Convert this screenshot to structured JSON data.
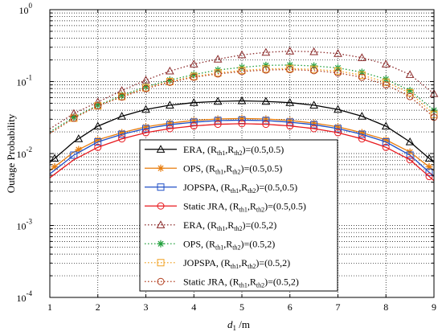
{
  "chart_data": {
    "type": "line",
    "title": "",
    "xlabel": "d",
    "xlabel_sub": "1",
    "xlabel_unit": " /m",
    "ylabel": "Outage Probability",
    "xlim": [
      1,
      9
    ],
    "ylim": [
      0.0001,
      1
    ],
    "yscale": "log",
    "grid": true,
    "legend_position": "lower-center",
    "x_ticks": [
      "1",
      "2",
      "3",
      "4",
      "5",
      "6",
      "7",
      "8",
      "9"
    ],
    "y_ticks": [
      {
        "base": "10",
        "exp": "0"
      },
      {
        "base": "10",
        "exp": "-1"
      },
      {
        "base": "10",
        "exp": "-2"
      },
      {
        "base": "10",
        "exp": "-3"
      },
      {
        "base": "10",
        "exp": "-4"
      }
    ],
    "series": [
      {
        "name": "ERA,",
        "pair": "(0.5,0.5)",
        "color": "#000000",
        "dash": "solid",
        "marker": "triangle",
        "x": [
          1,
          1.5,
          2,
          2.5,
          3,
          3.5,
          4,
          4.5,
          5,
          5.5,
          6,
          6.5,
          7,
          7.5,
          8,
          8.5,
          9
        ],
        "y": [
          0.0075,
          0.0145,
          0.024,
          0.033,
          0.041,
          0.047,
          0.051,
          0.053,
          0.054,
          0.053,
          0.051,
          0.047,
          0.041,
          0.033,
          0.024,
          0.0145,
          0.0075
        ]
      },
      {
        "name": "OPS,",
        "pair": "(0.5,0.5)",
        "color": "#e87d0d",
        "dash": "solid",
        "marker": "star",
        "x": [
          1,
          1.5,
          2,
          2.5,
          3,
          3.5,
          4,
          4.5,
          5,
          5.5,
          6,
          6.5,
          7,
          7.5,
          8,
          8.5,
          9
        ],
        "y": [
          0.0058,
          0.0105,
          0.0155,
          0.0195,
          0.0235,
          0.0265,
          0.0288,
          0.0302,
          0.0307,
          0.0302,
          0.0288,
          0.0265,
          0.0235,
          0.0195,
          0.0155,
          0.0105,
          0.0058
        ]
      },
      {
        "name": "JOPSPA,",
        "pair": "(0.5,0.5)",
        "color": "#1f4fc6",
        "dash": "solid",
        "marker": "square",
        "x": [
          1,
          1.5,
          2,
          2.5,
          3,
          3.5,
          4,
          4.5,
          5,
          5.5,
          6,
          6.5,
          7,
          7.5,
          8,
          8.5,
          9
        ],
        "y": [
          0.0052,
          0.0095,
          0.0145,
          0.0185,
          0.0222,
          0.0252,
          0.0273,
          0.0287,
          0.0291,
          0.0287,
          0.0273,
          0.0252,
          0.0222,
          0.0185,
          0.0145,
          0.0095,
          0.0048
        ]
      },
      {
        "name": "Static JRA,",
        "pair": "(0.5,0.5)",
        "color": "#e8191e",
        "dash": "solid",
        "marker": "circle",
        "x": [
          1,
          1.5,
          2,
          2.5,
          3,
          3.5,
          4,
          4.5,
          5,
          5.5,
          6,
          6.5,
          7,
          7.5,
          8,
          8.5,
          9
        ],
        "y": [
          0.0046,
          0.0082,
          0.0122,
          0.016,
          0.0195,
          0.0222,
          0.0242,
          0.0255,
          0.026,
          0.0255,
          0.0242,
          0.0222,
          0.0195,
          0.016,
          0.0122,
          0.0082,
          0.0042
        ]
      },
      {
        "name": "ERA,",
        "pair": "(0.5,2)",
        "color": "#8b2a2a",
        "dash": "dotted",
        "marker": "triangle",
        "x": [
          1,
          1.5,
          2,
          2.5,
          3,
          3.5,
          4,
          4.5,
          5,
          5.5,
          6,
          6.5,
          7,
          7.5,
          8,
          8.5,
          9
        ],
        "y": [
          0.022,
          0.036,
          0.052,
          0.075,
          0.105,
          0.14,
          0.175,
          0.205,
          0.235,
          0.255,
          0.265,
          0.26,
          0.245,
          0.215,
          0.175,
          0.125,
          0.068
        ]
      },
      {
        "name": "OPS,",
        "pair": "(0.5,2)",
        "color": "#1f9e3a",
        "dash": "dotted",
        "marker": "star",
        "x": [
          1,
          1.5,
          2,
          2.5,
          3,
          3.5,
          4,
          4.5,
          5,
          5.5,
          6,
          6.5,
          7,
          7.5,
          8,
          8.5,
          9
        ],
        "y": [
          0.02,
          0.032,
          0.047,
          0.064,
          0.085,
          0.105,
          0.125,
          0.145,
          0.158,
          0.168,
          0.17,
          0.165,
          0.155,
          0.135,
          0.108,
          0.075,
          0.04
        ]
      },
      {
        "name": "JOPSPA,",
        "pair": "(0.5,2)",
        "color": "#f0a020",
        "dash": "dotted",
        "marker": "square",
        "x": [
          1,
          1.5,
          2,
          2.5,
          3,
          3.5,
          4,
          4.5,
          5,
          5.5,
          6,
          6.5,
          7,
          7.5,
          8,
          8.5,
          9
        ],
        "y": [
          0.019,
          0.031,
          0.046,
          0.062,
          0.082,
          0.1,
          0.118,
          0.132,
          0.143,
          0.15,
          0.152,
          0.148,
          0.14,
          0.123,
          0.098,
          0.07,
          0.035
        ]
      },
      {
        "name": "Static JRA,",
        "pair": "(0.5,2)",
        "color": "#b03a1a",
        "dash": "dotted",
        "marker": "circle",
        "x": [
          1,
          1.5,
          2,
          2.5,
          3,
          3.5,
          4,
          4.5,
          5,
          5.5,
          6,
          6.5,
          7,
          7.5,
          8,
          8.5,
          9
        ],
        "y": [
          0.019,
          0.031,
          0.046,
          0.061,
          0.08,
          0.098,
          0.115,
          0.128,
          0.138,
          0.145,
          0.147,
          0.142,
          0.132,
          0.115,
          0.09,
          0.062,
          0.032
        ]
      }
    ],
    "marker_x": [
      [
        1.1,
        1.6,
        2,
        2.5,
        3,
        3.5,
        4,
        4.5,
        5,
        5.5,
        6,
        6.5,
        7,
        7.5,
        8,
        8.5,
        8.9
      ],
      [
        1.1,
        1.6,
        2,
        2.5,
        3,
        3.5,
        4,
        4.5,
        5,
        5.5,
        6,
        6.5,
        7,
        7.5,
        8,
        8.5,
        8.9
      ],
      [
        1.5,
        2,
        2.5,
        3,
        3.5,
        4,
        4.5,
        5,
        5.5,
        6,
        6.5,
        7,
        7.5,
        8,
        8.5,
        8.9
      ],
      [
        2,
        2.5,
        3,
        3.5,
        4,
        4.5,
        5,
        5.5,
        6,
        6.5,
        7,
        7.5,
        8,
        8.5,
        8.9
      ],
      [
        1.5,
        2,
        2.5,
        3,
        3.5,
        4,
        4.5,
        5,
        5.5,
        6,
        6.5,
        7,
        7.5,
        8,
        8.5,
        9
      ],
      [
        1.5,
        2,
        2.5,
        3,
        3.5,
        4,
        4.5,
        5,
        5.5,
        6,
        6.5,
        7,
        7.5,
        8,
        8.5,
        9
      ],
      [
        1.5,
        2,
        2.5,
        3,
        3.5,
        4,
        4.5,
        5,
        5.5,
        6,
        6.5,
        7,
        7.5,
        8,
        8.5,
        9
      ],
      [
        1.5,
        2,
        2.5,
        3,
        3.5,
        4,
        4.5,
        5,
        5.5,
        6,
        6.5,
        7,
        7.5,
        8,
        8.5,
        9
      ]
    ],
    "legend": {
      "r_label": "R",
      "r_sub1": "th1",
      "r_sub2": "th2",
      "comma": ",",
      "open": "(",
      "close": ")=",
      "space": " "
    }
  }
}
